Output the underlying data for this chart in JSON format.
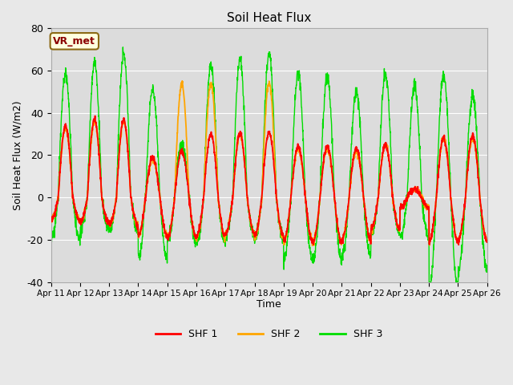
{
  "title": "Soil Heat Flux",
  "ylabel": "Soil Heat Flux (W/m2)",
  "xlabel": "Time",
  "ylim": [
    -40,
    80
  ],
  "annotation": "VR_met",
  "legend_labels": [
    "SHF 1",
    "SHF 2",
    "SHF 3"
  ],
  "legend_colors": [
    "#ff0000",
    "#ffa500",
    "#00dd00"
  ],
  "line_colors": [
    "#ff0000",
    "#ffa500",
    "#00dd00"
  ],
  "bg_color": "#e8e8e8",
  "plot_bg_color": "#dcdcdc",
  "x_tick_labels": [
    "Apr 11",
    "Apr 12",
    "Apr 13",
    "Apr 14",
    "Apr 15",
    "Apr 16",
    "Apr 17",
    "Apr 18",
    "Apr 19",
    "Apr 20",
    "Apr 21",
    "Apr 22",
    "Apr 23",
    "Apr 24",
    "Apr 25",
    "Apr 26"
  ],
  "yticks": [
    -40,
    -20,
    0,
    20,
    40,
    60,
    80
  ],
  "num_days": 15,
  "shf1_peaks": [
    34,
    37,
    37,
    19,
    22,
    30,
    30,
    31,
    24,
    24,
    23,
    25,
    4,
    28,
    29
  ],
  "shf2_peaks": [
    33,
    36,
    36,
    18,
    54,
    54,
    30,
    54,
    23,
    23,
    22,
    25,
    4,
    28,
    28
  ],
  "shf3_peaks": [
    59,
    63,
    68,
    51,
    25,
    63,
    65,
    68,
    59,
    57,
    50,
    59,
    53,
    58,
    48
  ],
  "shf1_mins": [
    -11,
    -12,
    -13,
    -18,
    -19,
    -18,
    -17,
    -18,
    -21,
    -21,
    -20,
    -15,
    -5,
    -21,
    -20
  ],
  "shf2_mins": [
    -11,
    -12,
    -13,
    -18,
    -19,
    -19,
    -17,
    -19,
    -21,
    -21,
    -20,
    -15,
    -5,
    -21,
    -20
  ],
  "shf3_mins": [
    -20,
    -15,
    -16,
    -29,
    -21,
    -21,
    -18,
    -19,
    -30,
    -30,
    -28,
    -17,
    -19,
    -43,
    -34
  ]
}
